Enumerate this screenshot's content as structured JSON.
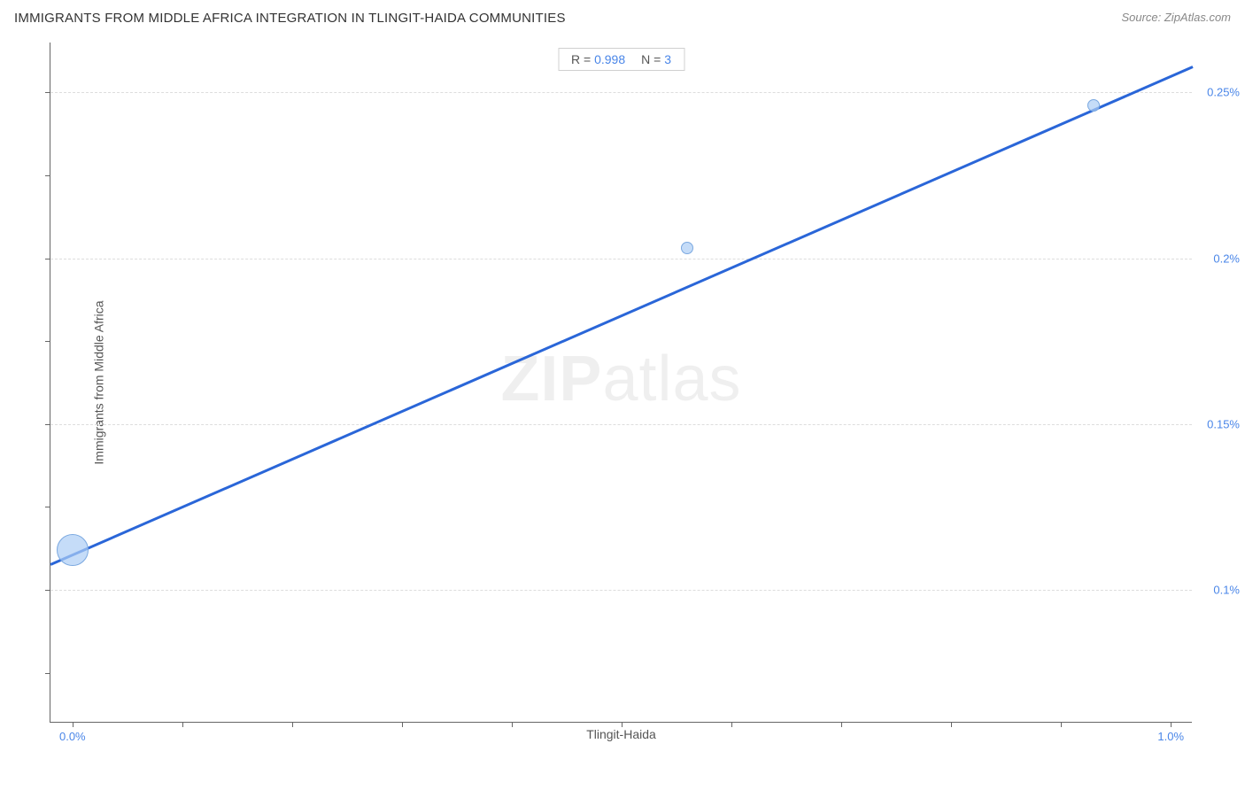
{
  "header": {
    "title": "IMMIGRANTS FROM MIDDLE AFRICA INTEGRATION IN TLINGIT-HAIDA COMMUNITIES",
    "source": "Source: ZipAtlas.com"
  },
  "chart": {
    "type": "scatter",
    "watermark_bold": "ZIP",
    "watermark_light": "atlas",
    "stats": {
      "r_label": "R =",
      "r_value": "0.998",
      "n_label": "N =",
      "n_value": "3"
    },
    "x_axis": {
      "label": "Tlingit-Haida",
      "min": -0.02,
      "max": 1.02,
      "tick_labels": [
        {
          "pos": 0.0,
          "text": "0.0%"
        },
        {
          "pos": 1.0,
          "text": "1.0%"
        }
      ],
      "ticks": [
        0.0,
        0.1,
        0.2,
        0.3,
        0.4,
        0.5,
        0.6,
        0.7,
        0.8,
        0.9,
        1.0
      ]
    },
    "y_axis": {
      "label": "Immigrants from Middle Africa",
      "min": 0.06,
      "max": 0.265,
      "tick_labels": [
        {
          "pos": 0.1,
          "text": "0.1%"
        },
        {
          "pos": 0.15,
          "text": "0.15%"
        },
        {
          "pos": 0.2,
          "text": "0.2%"
        },
        {
          "pos": 0.25,
          "text": "0.25%"
        }
      ],
      "gridlines": [
        0.1,
        0.15,
        0.2,
        0.25
      ],
      "ticks": [
        0.075,
        0.1,
        0.125,
        0.15,
        0.175,
        0.2,
        0.225,
        0.25
      ]
    },
    "trend_line": {
      "x1": -0.02,
      "y1": 0.108,
      "x2": 1.02,
      "y2": 0.258,
      "color": "#2a66d8"
    },
    "points": [
      {
        "x": 0.0,
        "y": 0.112,
        "size": 36
      },
      {
        "x": 0.56,
        "y": 0.203,
        "size": 14
      },
      {
        "x": 0.93,
        "y": 0.246,
        "size": 14
      }
    ],
    "point_fill": "rgba(173,205,245,0.7)",
    "point_stroke": "#7aa8e0",
    "background": "#ffffff",
    "grid_color": "#dddddd"
  }
}
